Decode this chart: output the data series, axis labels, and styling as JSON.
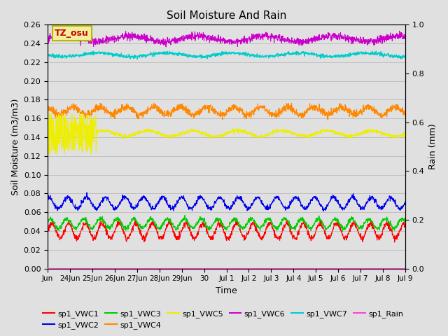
{
  "title": "Soil Moisture And Rain",
  "xlabel": "Time",
  "ylabel_left": "Soil Moisture (m3/m3)",
  "ylabel_right": "Rain (mm)",
  "ylim_left": [
    0.0,
    0.26
  ],
  "ylim_right": [
    0.0,
    1.0
  ],
  "background_color": "#e0e0e0",
  "annotation_text": "TZ_osu",
  "annotation_bg": "#f0f0a0",
  "annotation_border": "#b8b800",
  "annotation_text_color": "#cc0000",
  "series_order": [
    "sp1_VWC1",
    "sp1_VWC2",
    "sp1_VWC3",
    "sp1_VWC4",
    "sp1_VWC5",
    "sp1_VWC6",
    "sp1_VWC7",
    "sp1_Rain"
  ],
  "series": {
    "sp1_VWC1": {
      "color": "#ff0000",
      "base": 0.04,
      "amp": 0.008,
      "period": 0.75,
      "phase": 0.0,
      "noise": 0.0015,
      "axis": "left"
    },
    "sp1_VWC2": {
      "color": "#0000ee",
      "base": 0.07,
      "amp": 0.006,
      "period": 0.85,
      "phase": 0.2,
      "noise": 0.0012,
      "axis": "left"
    },
    "sp1_VWC3": {
      "color": "#00cc00",
      "base": 0.048,
      "amp": 0.005,
      "period": 0.75,
      "phase": 0.1,
      "noise": 0.0012,
      "axis": "left"
    },
    "sp1_VWC4": {
      "color": "#ff8800",
      "base": 0.168,
      "amp": 0.004,
      "period": 1.2,
      "phase": 0.3,
      "noise": 0.002,
      "axis": "left"
    },
    "sp1_VWC5": {
      "color": "#eeee00",
      "base": 0.144,
      "amp": 0.003,
      "period": 2.0,
      "phase": 0.0,
      "noise": 0.001,
      "axis": "left",
      "erratic_start": true,
      "erratic_days": 2.2
    },
    "sp1_VWC6": {
      "color": "#cc00cc",
      "base": 0.245,
      "amp": 0.003,
      "period": 3.0,
      "phase": 0.0,
      "noise": 0.002,
      "axis": "left"
    },
    "sp1_VWC7": {
      "color": "#00cccc",
      "base": 0.228,
      "amp": 0.002,
      "period": 3.0,
      "phase": 0.5,
      "noise": 0.001,
      "axis": "left"
    },
    "sp1_Rain": {
      "color": "#ff44cc",
      "base": 0.0,
      "amp": 0.0,
      "period": 1.0,
      "phase": 0.0,
      "noise": 0.0,
      "axis": "right"
    }
  },
  "xtick_labels": [
    "Jun",
    "24Jun",
    "25Jun",
    "26Jun",
    "27Jun",
    "28Jun",
    "29Jun",
    "30",
    "Jul 1",
    "Jul 2",
    "Jul 3",
    "Jul 4",
    "Jul 5",
    "Jul 6",
    "Jul 7",
    "Jul 8",
    "Jul 9"
  ],
  "yticks_left": [
    0.0,
    0.02,
    0.04,
    0.06,
    0.08,
    0.1,
    0.12,
    0.14,
    0.16,
    0.18,
    0.2,
    0.22,
    0.24,
    0.26
  ],
  "yticks_right": [
    0.0,
    0.2,
    0.4,
    0.6,
    0.8,
    1.0
  ],
  "grid_color": "#c0c0c0",
  "linewidth": 0.8,
  "n_days": 16,
  "n_pts_per_day": 96,
  "figsize": [
    6.4,
    4.8
  ],
  "dpi": 100
}
